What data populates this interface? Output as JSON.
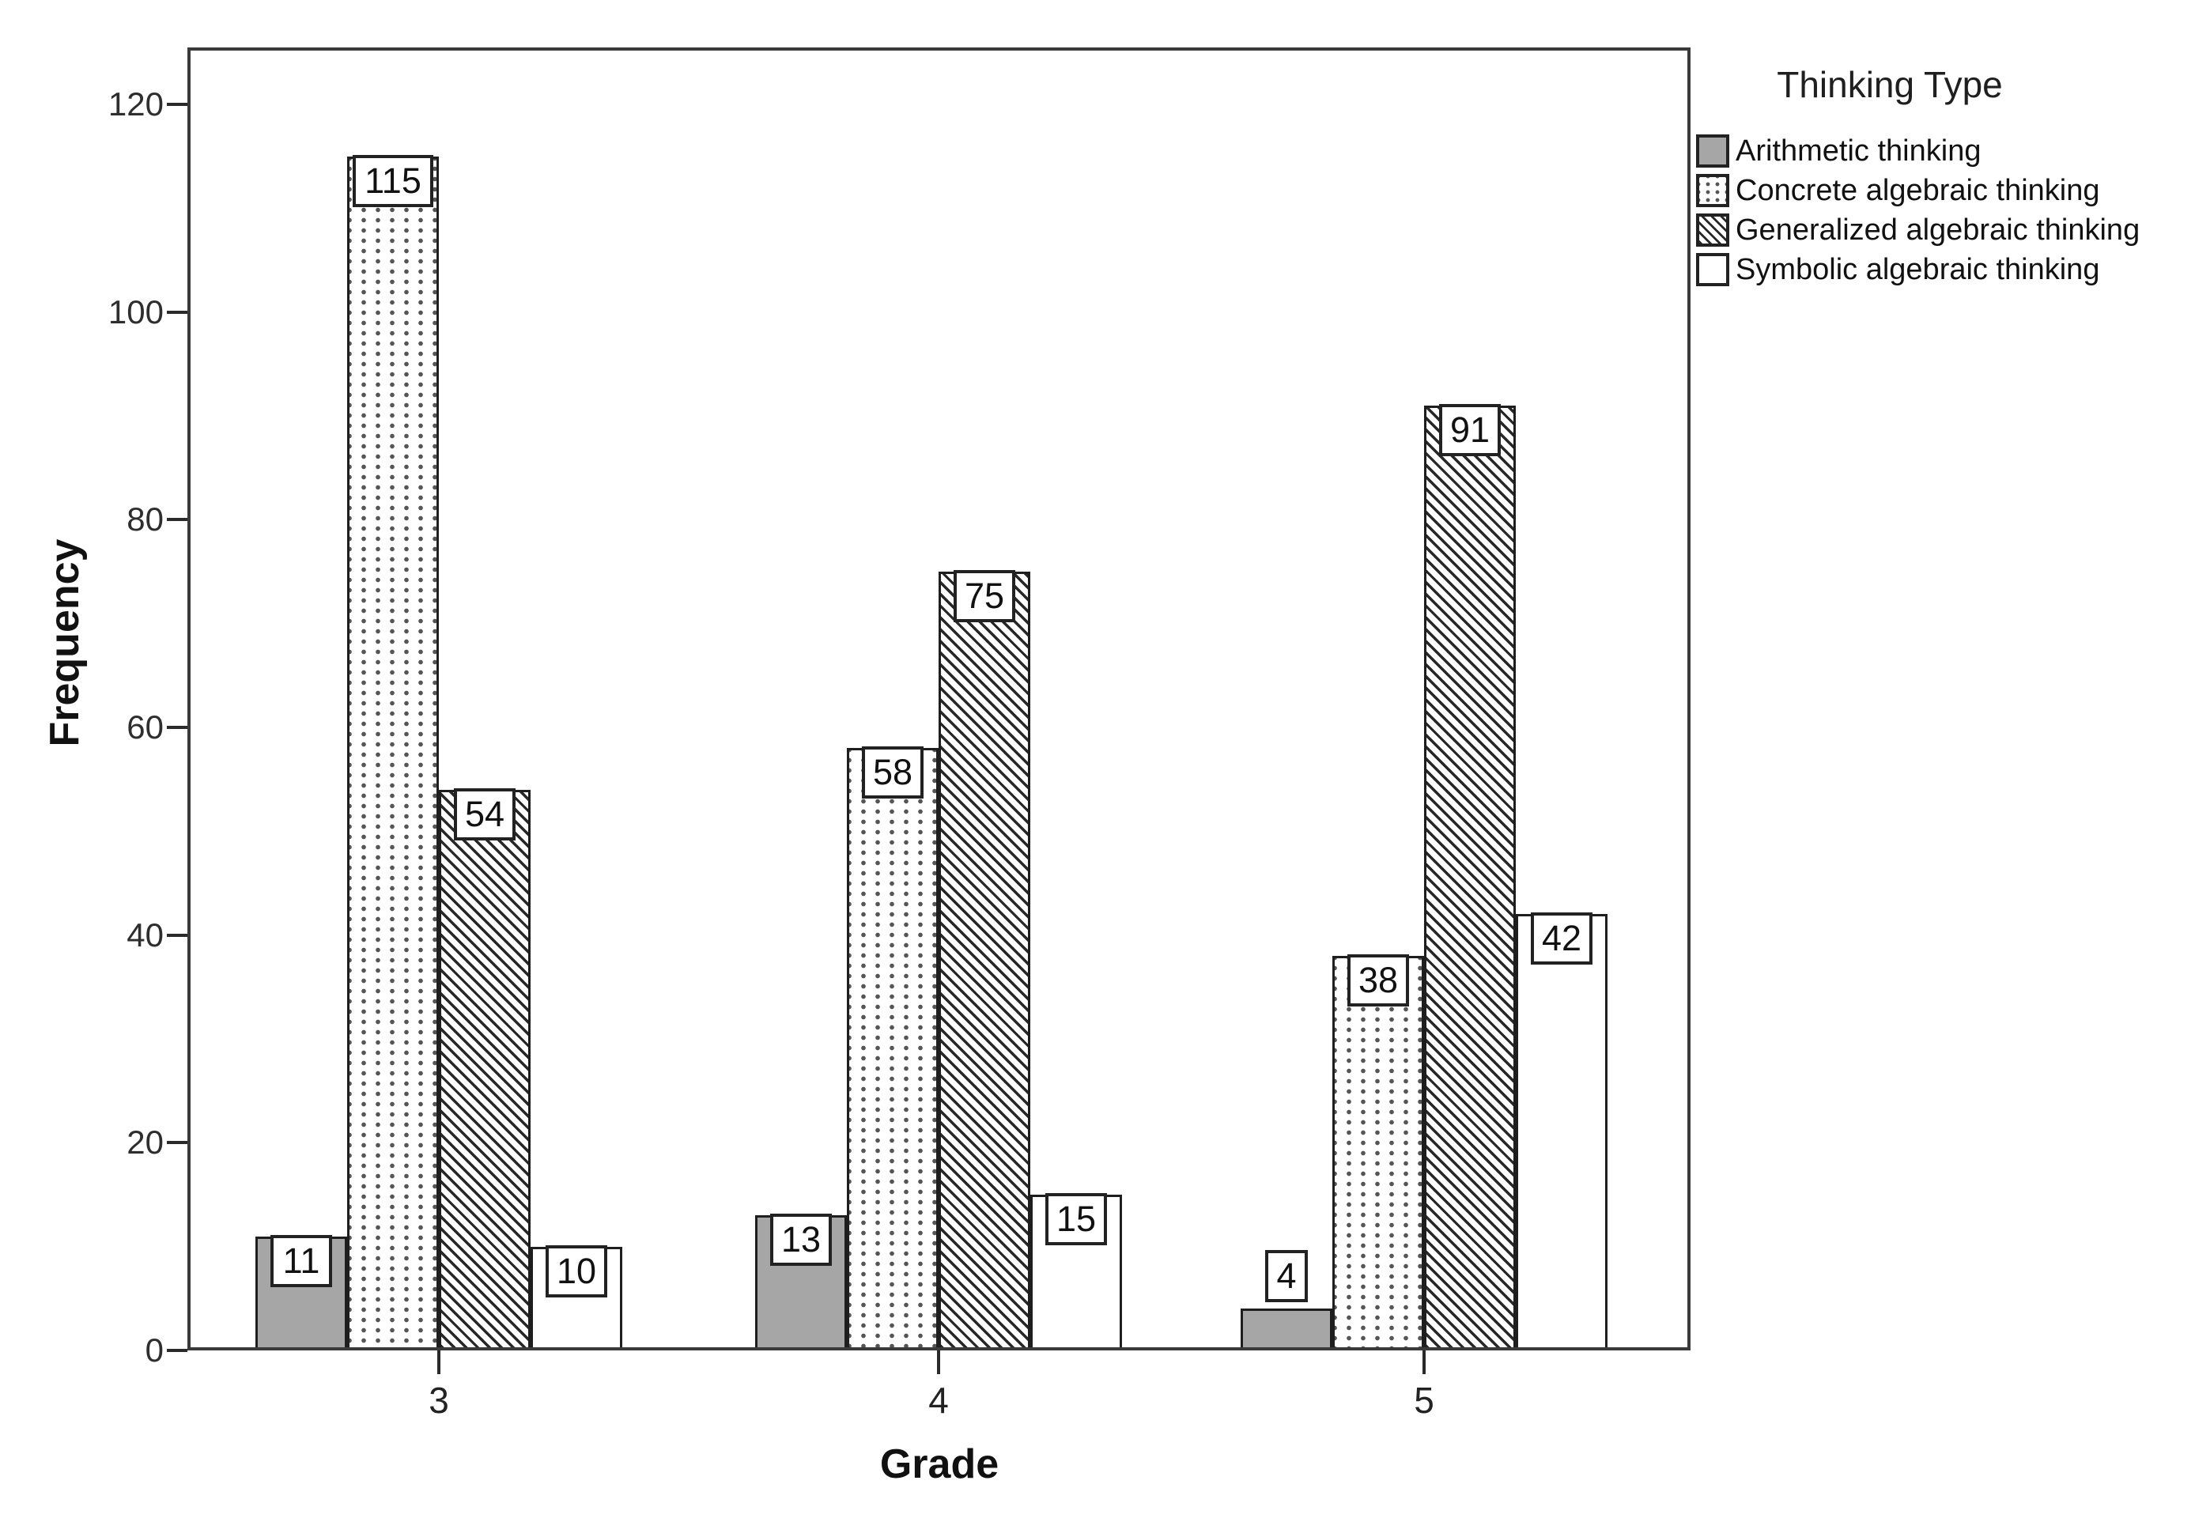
{
  "chart_data": {
    "type": "bar",
    "title": "",
    "xlabel": "Grade",
    "ylabel": "Frequency",
    "legend_title": "Thinking Type",
    "legend_position": "top-right-outside",
    "grid": false,
    "categories": [
      "3",
      "4",
      "5"
    ],
    "series": [
      {
        "name": "Arithmetic thinking",
        "pattern": "solid-gray",
        "values": [
          11,
          13,
          4
        ]
      },
      {
        "name": "Concrete algebraic thinking",
        "pattern": "dots",
        "values": [
          115,
          58,
          38
        ]
      },
      {
        "name": "Generalized algebraic thinking",
        "pattern": "diagonal-hatch",
        "values": [
          54,
          75,
          91
        ]
      },
      {
        "name": "Symbolic algebraic thinking",
        "pattern": "white",
        "values": [
          10,
          15,
          42
        ]
      }
    ],
    "bar_value_labels": [
      [
        11,
        13,
        4
      ],
      [
        115,
        58,
        38
      ],
      [
        54,
        75,
        91
      ],
      [
        10,
        15,
        42
      ]
    ],
    "y_ticks": [
      0,
      20,
      40,
      60,
      80,
      100,
      120
    ],
    "ylim": [
      0,
      125.5
    ]
  },
  "colors": {
    "arithmetic_fill": "#a6a6a6",
    "pattern_ink": "#272727",
    "axis_ink": "#2a2a2a",
    "frame": "#3a3a3a",
    "background": "#ffffff"
  }
}
